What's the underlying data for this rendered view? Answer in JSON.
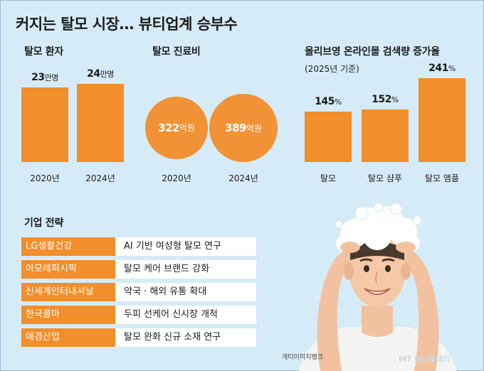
{
  "main_title": "커지는 탈모 시장… 뷰티업계 승부수",
  "colors": {
    "bar": "#f28e2b",
    "background": "#d6ebf8",
    "strategy_label": "#f28e2b"
  },
  "chart_data": [
    {
      "type": "bar",
      "title": "탈모 환자",
      "categories": [
        "2020년",
        "2024년"
      ],
      "values": [
        23,
        24
      ],
      "value_labels": [
        "23",
        "24"
      ],
      "unit": "만명"
    },
    {
      "type": "bubble",
      "title": "탈모 진료비",
      "categories": [
        "2020년",
        "2024년"
      ],
      "values": [
        322,
        389
      ],
      "value_labels": [
        "322",
        "389"
      ],
      "unit": "억원"
    },
    {
      "type": "bar",
      "title": "올리브영 온라인몰 검색량 증가율",
      "subtitle": "(2025년 기준)",
      "categories": [
        "탈모",
        "탈모 샴푸",
        "탈모 앰플"
      ],
      "values": [
        145,
        152,
        241
      ],
      "value_labels": [
        "145",
        "152",
        "241"
      ],
      "unit": "%"
    }
  ],
  "strategy": {
    "title": "기업 전략",
    "items": [
      {
        "company": "LG생활건강",
        "strategy": "AI 기반 여성형 탈모 연구"
      },
      {
        "company": "아모레퍼시픽",
        "strategy": "탈모 케어 브랜드 강화"
      },
      {
        "company": "신세계인터내셔날",
        "strategy": "약국 · 해외 유통 확대"
      },
      {
        "company": "한국콜마",
        "strategy": "두피 선케어 신시장 개척"
      },
      {
        "company": "애경산업",
        "strategy": "탈모 완화 신규 소재 연구"
      }
    ]
  },
  "credit": "게티이미지뱅크",
  "logo": "MT 머니투데이"
}
